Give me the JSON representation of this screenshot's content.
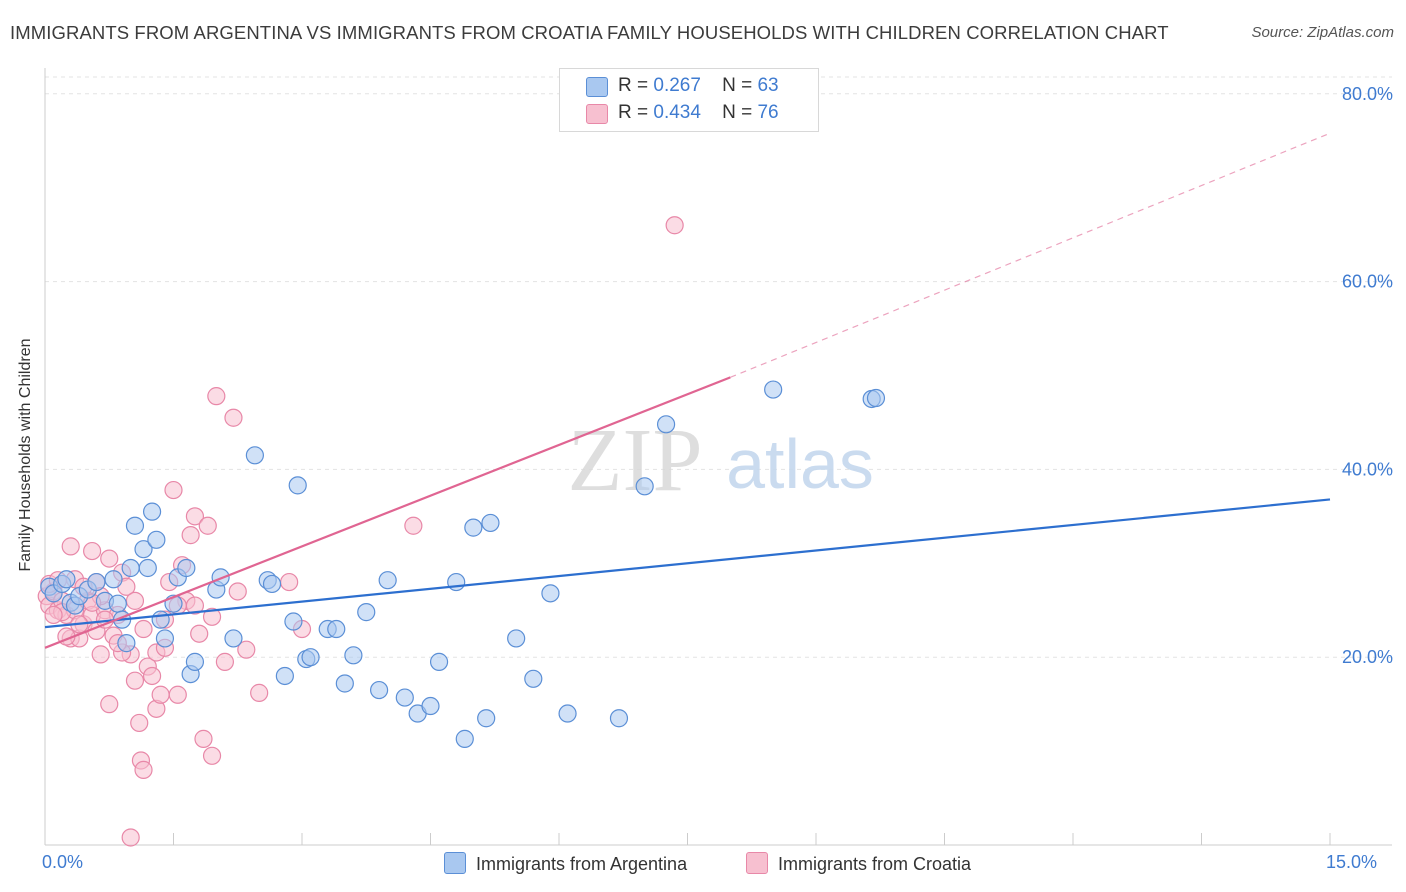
{
  "title": "IMMIGRANTS FROM ARGENTINA VS IMMIGRANTS FROM CROATIA FAMILY HOUSEHOLDS WITH CHILDREN CORRELATION CHART",
  "source": "Source: ZipAtlas.com",
  "watermark": {
    "zip": "ZIP",
    "atlas": "atlas"
  },
  "legend": {
    "argentina": {
      "r_label": "R =",
      "r_value": "0.267",
      "n_label": "N =",
      "n_value": "63"
    },
    "croatia": {
      "r_label": "R =",
      "r_value": "0.434",
      "n_label": "N =",
      "n_value": "76"
    }
  },
  "axes": {
    "x_min_label": "0.0%",
    "x_max_label": "15.0%"
  },
  "colors": {
    "blue_fill": "#a9c8f0",
    "blue_stroke": "#5b8fd6",
    "blue_line": "#2d6fcf",
    "pink_fill": "#f7c0d0",
    "pink_stroke": "#e888a8",
    "pink_line": "#e06592",
    "grid": "#e3e3e3",
    "tick_label": "#3f7bd0"
  },
  "chart_data": {
    "type": "scatter",
    "title": "IMMIGRANTS FROM ARGENTINA VS IMMIGRANTS FROM CROATIA FAMILY HOUSEHOLDS WITH CHILDREN CORRELATION CHART",
    "xlabel": "",
    "ylabel": "Family Households with Children",
    "xlim": [
      0,
      15
    ],
    "ylim": [
      0,
      82
    ],
    "y_ticks": [
      20,
      40,
      60,
      80
    ],
    "y_tick_labels": [
      "20.0%",
      "40.0%",
      "60.0%",
      "80.0%"
    ],
    "legend_position": "bottom",
    "series": [
      {
        "name": "Immigrants from Argentina",
        "color": "#5b8fd6",
        "trend": {
          "x": [
            0,
            15
          ],
          "y": [
            23.2,
            36.8
          ],
          "dashed_beyond": null
        },
        "points": [
          [
            0.05,
            27.5
          ],
          [
            0.1,
            26.8
          ],
          [
            0.2,
            27.8
          ],
          [
            0.25,
            28.3
          ],
          [
            0.3,
            25.8
          ],
          [
            0.35,
            25.5
          ],
          [
            0.4,
            26.5
          ],
          [
            0.5,
            27.2
          ],
          [
            0.6,
            28.0
          ],
          [
            0.7,
            26.0
          ],
          [
            0.8,
            28.3
          ],
          [
            0.85,
            25.7
          ],
          [
            0.9,
            24.0
          ],
          [
            0.95,
            21.5
          ],
          [
            1.0,
            29.5
          ],
          [
            1.05,
            34.0
          ],
          [
            1.15,
            31.5
          ],
          [
            1.2,
            29.5
          ],
          [
            1.25,
            35.5
          ],
          [
            1.3,
            32.5
          ],
          [
            1.35,
            24.0
          ],
          [
            1.4,
            22.0
          ],
          [
            1.5,
            25.7
          ],
          [
            1.55,
            28.5
          ],
          [
            1.65,
            29.5
          ],
          [
            1.7,
            18.2
          ],
          [
            1.75,
            19.5
          ],
          [
            2.0,
            27.2
          ],
          [
            2.05,
            28.5
          ],
          [
            2.2,
            22.0
          ],
          [
            2.45,
            41.5
          ],
          [
            2.6,
            28.2
          ],
          [
            2.65,
            27.8
          ],
          [
            2.8,
            18.0
          ],
          [
            2.9,
            23.8
          ],
          [
            2.95,
            38.3
          ],
          [
            3.05,
            19.8
          ],
          [
            3.1,
            20.0
          ],
          [
            3.3,
            23.0
          ],
          [
            3.4,
            23.0
          ],
          [
            3.5,
            17.2
          ],
          [
            3.6,
            20.2
          ],
          [
            3.75,
            24.8
          ],
          [
            3.9,
            16.5
          ],
          [
            4.0,
            28.2
          ],
          [
            4.2,
            15.7
          ],
          [
            4.35,
            14.0
          ],
          [
            4.5,
            14.8
          ],
          [
            4.6,
            19.5
          ],
          [
            4.8,
            28.0
          ],
          [
            4.9,
            11.3
          ],
          [
            5.0,
            33.8
          ],
          [
            5.15,
            13.5
          ],
          [
            5.2,
            34.3
          ],
          [
            5.5,
            22.0
          ],
          [
            5.7,
            17.7
          ],
          [
            5.9,
            26.8
          ],
          [
            6.1,
            14.0
          ],
          [
            6.7,
            13.5
          ],
          [
            7.0,
            38.2
          ],
          [
            7.25,
            44.8
          ],
          [
            8.5,
            48.5
          ],
          [
            9.65,
            47.5
          ],
          [
            9.7,
            47.6
          ]
        ]
      },
      {
        "name": "Immigrants from Croatia",
        "color": "#e888a8",
        "trend": {
          "x": [
            0,
            8.0
          ],
          "y": [
            21.0,
            49.8
          ],
          "dashed_to": [
            15,
            75.8
          ]
        },
        "points": [
          [
            0.02,
            26.5
          ],
          [
            0.05,
            25.5
          ],
          [
            0.1,
            27.0
          ],
          [
            0.15,
            25.0
          ],
          [
            0.2,
            26.0
          ],
          [
            0.25,
            24.5
          ],
          [
            0.3,
            22.0
          ],
          [
            0.35,
            25.0
          ],
          [
            0.4,
            22.0
          ],
          [
            0.45,
            23.5
          ],
          [
            0.5,
            26.0
          ],
          [
            0.55,
            24.5
          ],
          [
            0.6,
            22.8
          ],
          [
            0.65,
            20.3
          ],
          [
            0.7,
            25.0
          ],
          [
            0.75,
            15.0
          ],
          [
            0.8,
            22.3
          ],
          [
            0.85,
            24.5
          ],
          [
            0.9,
            29.0
          ],
          [
            0.95,
            27.5
          ],
          [
            1.0,
            20.3
          ],
          [
            1.05,
            17.5
          ],
          [
            1.1,
            13.0
          ],
          [
            1.12,
            9.0
          ],
          [
            1.15,
            8.0
          ],
          [
            1.2,
            19.0
          ],
          [
            1.25,
            18.0
          ],
          [
            1.3,
            14.5
          ],
          [
            1.35,
            16.0
          ],
          [
            1.4,
            24.0
          ],
          [
            1.45,
            28.0
          ],
          [
            1.5,
            37.8
          ],
          [
            1.55,
            16.0
          ],
          [
            1.6,
            29.8
          ],
          [
            1.65,
            26.0
          ],
          [
            1.7,
            33.0
          ],
          [
            1.75,
            35.0
          ],
          [
            1.8,
            22.5
          ],
          [
            1.85,
            11.3
          ],
          [
            1.9,
            34.0
          ],
          [
            1.95,
            24.3
          ],
          [
            2.0,
            47.8
          ],
          [
            2.1,
            19.5
          ],
          [
            2.2,
            45.5
          ],
          [
            2.35,
            20.8
          ],
          [
            2.5,
            16.2
          ],
          [
            2.85,
            28.0
          ],
          [
            3.0,
            23.0
          ],
          [
            4.3,
            34.0
          ],
          [
            7.35,
            66.0
          ],
          [
            0.3,
            31.8
          ],
          [
            0.55,
            31.3
          ],
          [
            0.6,
            28.0
          ],
          [
            0.75,
            30.5
          ],
          [
            0.35,
            28.3
          ],
          [
            1.0,
            0.8
          ],
          [
            0.9,
            20.5
          ],
          [
            1.3,
            20.5
          ],
          [
            1.95,
            9.5
          ],
          [
            0.2,
            24.8
          ],
          [
            0.45,
            27.5
          ],
          [
            0.7,
            24.0
          ],
          [
            0.85,
            21.5
          ],
          [
            1.55,
            25.5
          ],
          [
            1.15,
            23.0
          ],
          [
            0.65,
            26.5
          ],
          [
            0.05,
            27.8
          ],
          [
            0.15,
            28.2
          ],
          [
            0.4,
            23.5
          ],
          [
            1.4,
            21.0
          ],
          [
            1.75,
            25.5
          ],
          [
            2.25,
            27.0
          ],
          [
            0.1,
            24.5
          ],
          [
            0.55,
            25.8
          ],
          [
            0.25,
            22.2
          ],
          [
            1.05,
            26.0
          ]
        ]
      }
    ]
  },
  "bottom_legend": [
    "Immigrants from Argentina",
    "Immigrants from Croatia"
  ]
}
